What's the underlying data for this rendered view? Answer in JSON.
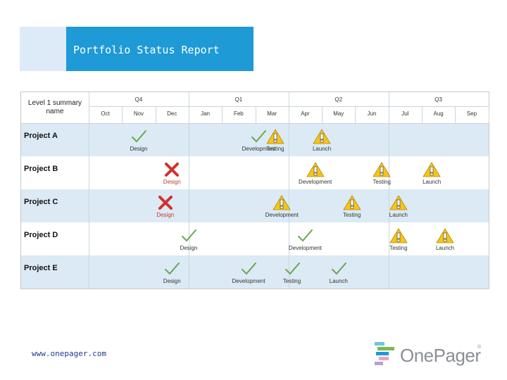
{
  "title": "Portfolio Status Report",
  "footer_url": "www.onepager.com",
  "logo_text": "OnePager",
  "logo_mark": "®",
  "colors": {
    "title_bg": "#1e9ad6",
    "row_shade": "#dbeaf4",
    "check": "#6aa84f",
    "cross": "#d0312d",
    "warning": "#f5c518"
  },
  "header": {
    "label": "Level 1 summary name",
    "quarters": [
      "Q4",
      "Q1",
      "Q2",
      "Q3"
    ],
    "months": [
      "Oct",
      "Nov",
      "Dec",
      "Jan",
      "Feb",
      "Mar",
      "Apr",
      "May",
      "Jun",
      "Jul",
      "Aug",
      "Sep"
    ]
  },
  "rows": [
    {
      "label": "Project A",
      "milestones": [
        {
          "month": 1.0,
          "icon": "check",
          "label": "Design"
        },
        {
          "month": 4.6,
          "icon": "check",
          "label": "Development"
        },
        {
          "month": 5.1,
          "icon": "warning",
          "label": "Testing"
        },
        {
          "month": 6.5,
          "icon": "warning",
          "label": "Launch"
        }
      ]
    },
    {
      "label": "Project B",
      "milestones": [
        {
          "month": 2.0,
          "icon": "cross",
          "label": "Design"
        },
        {
          "month": 6.3,
          "icon": "warning",
          "label": "Development"
        },
        {
          "month": 8.3,
          "icon": "warning",
          "label": "Testing"
        },
        {
          "month": 9.8,
          "icon": "warning",
          "label": "Launch"
        }
      ]
    },
    {
      "label": "Project C",
      "milestones": [
        {
          "month": 1.8,
          "icon": "cross",
          "label": "Design"
        },
        {
          "month": 5.3,
          "icon": "warning",
          "label": "Development"
        },
        {
          "month": 7.4,
          "icon": "warning",
          "label": "Testing"
        },
        {
          "month": 8.8,
          "icon": "warning",
          "label": "Launch"
        }
      ]
    },
    {
      "label": "Project D",
      "milestones": [
        {
          "month": 2.5,
          "icon": "check",
          "label": "Design"
        },
        {
          "month": 6.0,
          "icon": "check",
          "label": "Development"
        },
        {
          "month": 8.8,
          "icon": "warning",
          "label": "Testing"
        },
        {
          "month": 10.2,
          "icon": "warning",
          "label": "Launch"
        }
      ]
    },
    {
      "label": "Project E",
      "milestones": [
        {
          "month": 2.0,
          "icon": "check",
          "label": "Design"
        },
        {
          "month": 4.3,
          "icon": "check",
          "label": "Development"
        },
        {
          "month": 5.6,
          "icon": "check",
          "label": "Testing"
        },
        {
          "month": 7.0,
          "icon": "check",
          "label": "Launch"
        }
      ]
    }
  ]
}
